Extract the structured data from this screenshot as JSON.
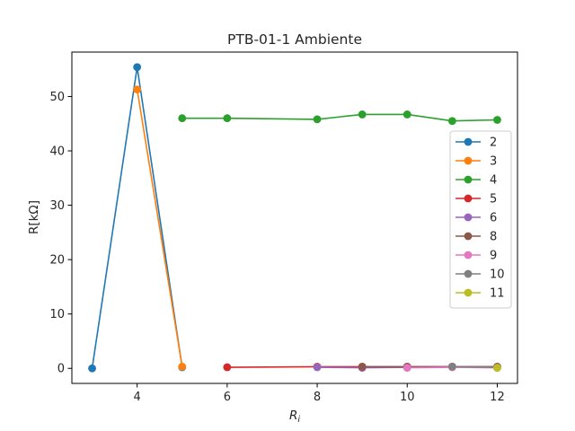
{
  "chart_data": {
    "type": "line",
    "title": "PTB-01-1 Ambiente",
    "xlabel_main": "R",
    "xlabel_sub": "i",
    "ylabel": "R[kΩ]",
    "xlim": [
      2.55,
      12.45
    ],
    "ylim": [
      -2.77,
      58.17
    ],
    "xticks": [
      4,
      6,
      8,
      10,
      12
    ],
    "yticks": [
      0,
      10,
      20,
      30,
      40,
      50
    ],
    "legend_position": "center-right",
    "series": [
      {
        "name": "2",
        "color": "#1f77b4",
        "x": [
          3,
          4,
          5
        ],
        "y": [
          0.0,
          55.4,
          0.2
        ]
      },
      {
        "name": "3",
        "color": "#ff7f0e",
        "x": [
          4,
          5
        ],
        "y": [
          51.3,
          0.3
        ]
      },
      {
        "name": "4",
        "color": "#2ca02c",
        "x": [
          5,
          6,
          8,
          9,
          10,
          11,
          12
        ],
        "y": [
          46.0,
          46.0,
          45.8,
          46.7,
          46.7,
          45.5,
          45.7
        ]
      },
      {
        "name": "5",
        "color": "#d62728",
        "x": [
          6,
          8,
          9,
          10,
          11,
          12
        ],
        "y": [
          0.2,
          0.3,
          0.3,
          0.3,
          0.3,
          0.3
        ]
      },
      {
        "name": "6",
        "color": "#9467bd",
        "x": [
          8,
          9,
          10,
          11,
          12
        ],
        "y": [
          0.2,
          0.1,
          0.2,
          0.3,
          0.2
        ]
      },
      {
        "name": "8",
        "color": "#8c564b",
        "x": [
          9,
          10,
          11,
          12
        ],
        "y": [
          0.3,
          0.3,
          0.3,
          0.3
        ]
      },
      {
        "name": "9",
        "color": "#e377c2",
        "x": [
          10,
          11,
          12
        ],
        "y": [
          0.1,
          0.2,
          0.1
        ]
      },
      {
        "name": "10",
        "color": "#7f7f7f",
        "x": [
          11,
          12
        ],
        "y": [
          0.3,
          0.2
        ]
      },
      {
        "name": "11",
        "color": "#bcbd22",
        "x": [
          12
        ],
        "y": [
          0.1
        ]
      }
    ]
  }
}
